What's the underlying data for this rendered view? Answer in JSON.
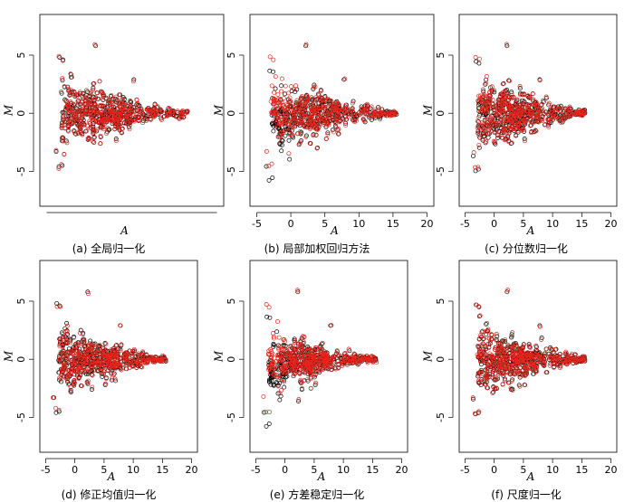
{
  "chart_data": [
    {
      "type": "scatter",
      "caption": "(a) 全局归一化",
      "xlabel": "A",
      "ylabel": "M",
      "show_x_ticks": false,
      "xlim": [
        -6,
        21
      ],
      "ylim": [
        -8,
        8.5
      ],
      "x_ticks": [],
      "y_ticks": [
        -5,
        0,
        5
      ],
      "normalized_shift": 0.0,
      "spread": 1.0,
      "series": [
        {
          "color": "#000000"
        },
        {
          "color": "#e8261c"
        }
      ]
    },
    {
      "type": "scatter",
      "caption": "(b) 局部加权回归方法",
      "xlabel": "A",
      "ylabel": "M",
      "show_x_ticks": true,
      "xlim": [
        -6,
        21
      ],
      "ylim": [
        -8,
        8.5
      ],
      "x_ticks": [
        -5,
        0,
        5,
        10,
        15,
        20
      ],
      "y_ticks": [
        -5,
        0,
        5
      ],
      "normalized_shift": 1.0,
      "spread": 1.0,
      "series": [
        {
          "color": "#000000"
        },
        {
          "color": "#e8261c"
        }
      ]
    },
    {
      "type": "scatter",
      "caption": "(c) 分位数归一化",
      "xlabel": "A",
      "ylabel": "M",
      "show_x_ticks": true,
      "xlim": [
        -6,
        21
      ],
      "ylim": [
        -8,
        8.5
      ],
      "x_ticks": [
        -5,
        0,
        5,
        10,
        15,
        20
      ],
      "y_ticks": [
        -5,
        0,
        5
      ],
      "normalized_shift": 0.3,
      "spread": 1.15,
      "series": [
        {
          "color": "#000000"
        },
        {
          "color": "#e8261c"
        }
      ]
    },
    {
      "type": "scatter",
      "caption": "(d) 修正均值归一化",
      "xlabel": "A",
      "ylabel": "M",
      "show_x_ticks": true,
      "xlim": [
        -6,
        21
      ],
      "ylim": [
        -8,
        8.5
      ],
      "x_ticks": [
        -5,
        0,
        5,
        10,
        15,
        20
      ],
      "y_ticks": [
        -5,
        0,
        5
      ],
      "normalized_shift": 0.0,
      "spread": 1.0,
      "series": [
        {
          "color": "#000000"
        },
        {
          "color": "#e8261c"
        }
      ]
    },
    {
      "type": "scatter",
      "caption": "(e) 方差稳定归一化",
      "xlabel": "A",
      "ylabel": "M",
      "show_x_ticks": true,
      "xlim": [
        -6,
        21
      ],
      "ylim": [
        -8,
        8.5
      ],
      "x_ticks": [
        -5,
        0,
        5,
        10,
        15,
        20
      ],
      "y_ticks": [
        -5,
        0,
        5
      ],
      "normalized_shift": 1.0,
      "spread": 0.9,
      "series": [
        {
          "color": "#000000"
        },
        {
          "color": "#e8261c"
        }
      ]
    },
    {
      "type": "scatter",
      "caption": "(f) 尺度归一化",
      "xlabel": "A",
      "ylabel": "M",
      "show_x_ticks": true,
      "xlim": [
        -6,
        21
      ],
      "ylim": [
        -8,
        8.5
      ],
      "x_ticks": [
        -5,
        0,
        5,
        10,
        15,
        20
      ],
      "y_ticks": [
        -5,
        0,
        5
      ],
      "normalized_shift": 0.1,
      "spread": 1.0,
      "series": [
        {
          "color": "#000000"
        },
        {
          "color": "#e8261c"
        }
      ]
    }
  ]
}
